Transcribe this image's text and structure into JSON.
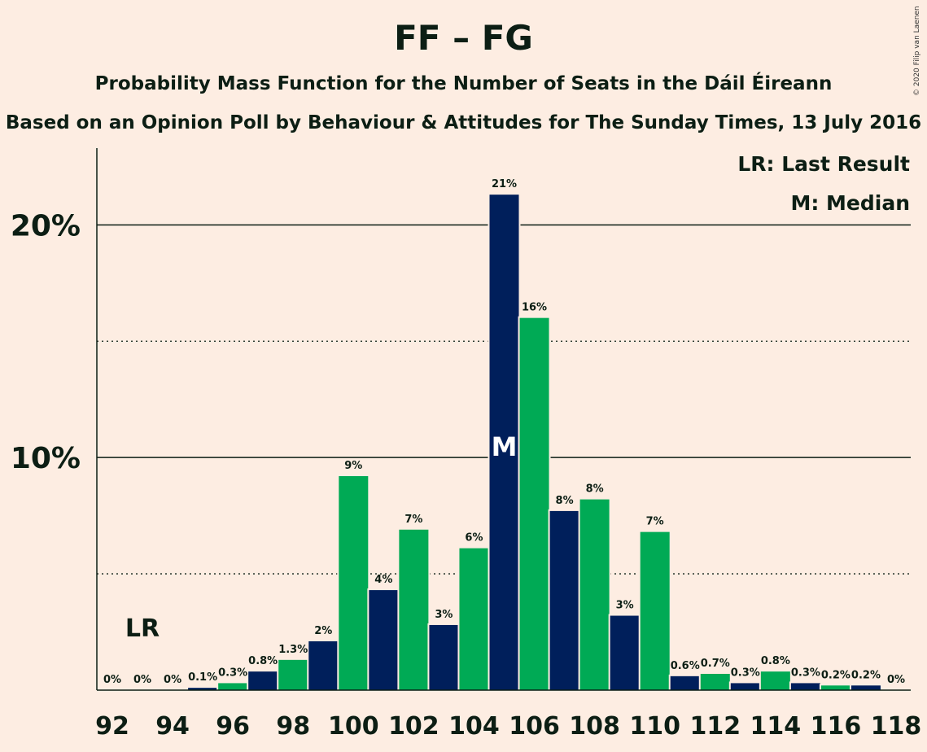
{
  "chart_data": {
    "type": "bar",
    "title": "FF – FG",
    "subtitle": "Probability Mass Function for the Number of Seats in the Dáil Éireann",
    "subtitle2": "Based on an Opinion Poll by Behaviour & Attitudes for The Sunday Times, 13 July 2016",
    "copyright": "© 2020 Filip van Laenen",
    "x": [
      92,
      93,
      94,
      95,
      96,
      97,
      98,
      99,
      100,
      101,
      102,
      103,
      104,
      105,
      106,
      107,
      108,
      109,
      110,
      111,
      112,
      113,
      114,
      115,
      116,
      117,
      118
    ],
    "values": [
      0,
      0,
      0,
      0.1,
      0.3,
      0.8,
      1.3,
      2.1,
      9.2,
      4.3,
      6.9,
      2.8,
      6.1,
      21.3,
      16.0,
      7.7,
      8.2,
      3.2,
      6.8,
      0.6,
      0.7,
      0.3,
      0.8,
      0.3,
      0.2,
      0.2,
      0
    ],
    "labels": [
      "0%",
      "0%",
      "0%",
      "0.1%",
      "0.3%",
      "0.8%",
      "1.3%",
      "2%",
      "9%",
      "4%",
      "7%",
      "3%",
      "6%",
      "21%",
      "16%",
      "8%",
      "8%",
      "3%",
      "7%",
      "0.6%",
      "0.7%",
      "0.3%",
      "0.8%",
      "0.3%",
      "0.2%",
      "0.2%",
      "0%"
    ],
    "x_tick_labels": [
      "92",
      "94",
      "96",
      "98",
      "100",
      "102",
      "104",
      "106",
      "108",
      "110",
      "112",
      "114",
      "116",
      "118"
    ],
    "y_tick_labels": [
      "10%",
      "20%"
    ],
    "y_major_ticks": [
      10,
      20
    ],
    "y_minor_ticks": [
      5,
      15
    ],
    "ylim": [
      0,
      23.3
    ],
    "last_result": 93,
    "last_result_label": "LR",
    "median": 105,
    "median_label": "M",
    "legend": [
      "LR: Last Result",
      "M: Median"
    ],
    "legend_position": "top-right",
    "grid": true,
    "colors": {
      "navy": "#001F5B",
      "green": "#00AA55",
      "background": "#FDEDE2",
      "text": "#0C1E14"
    }
  }
}
